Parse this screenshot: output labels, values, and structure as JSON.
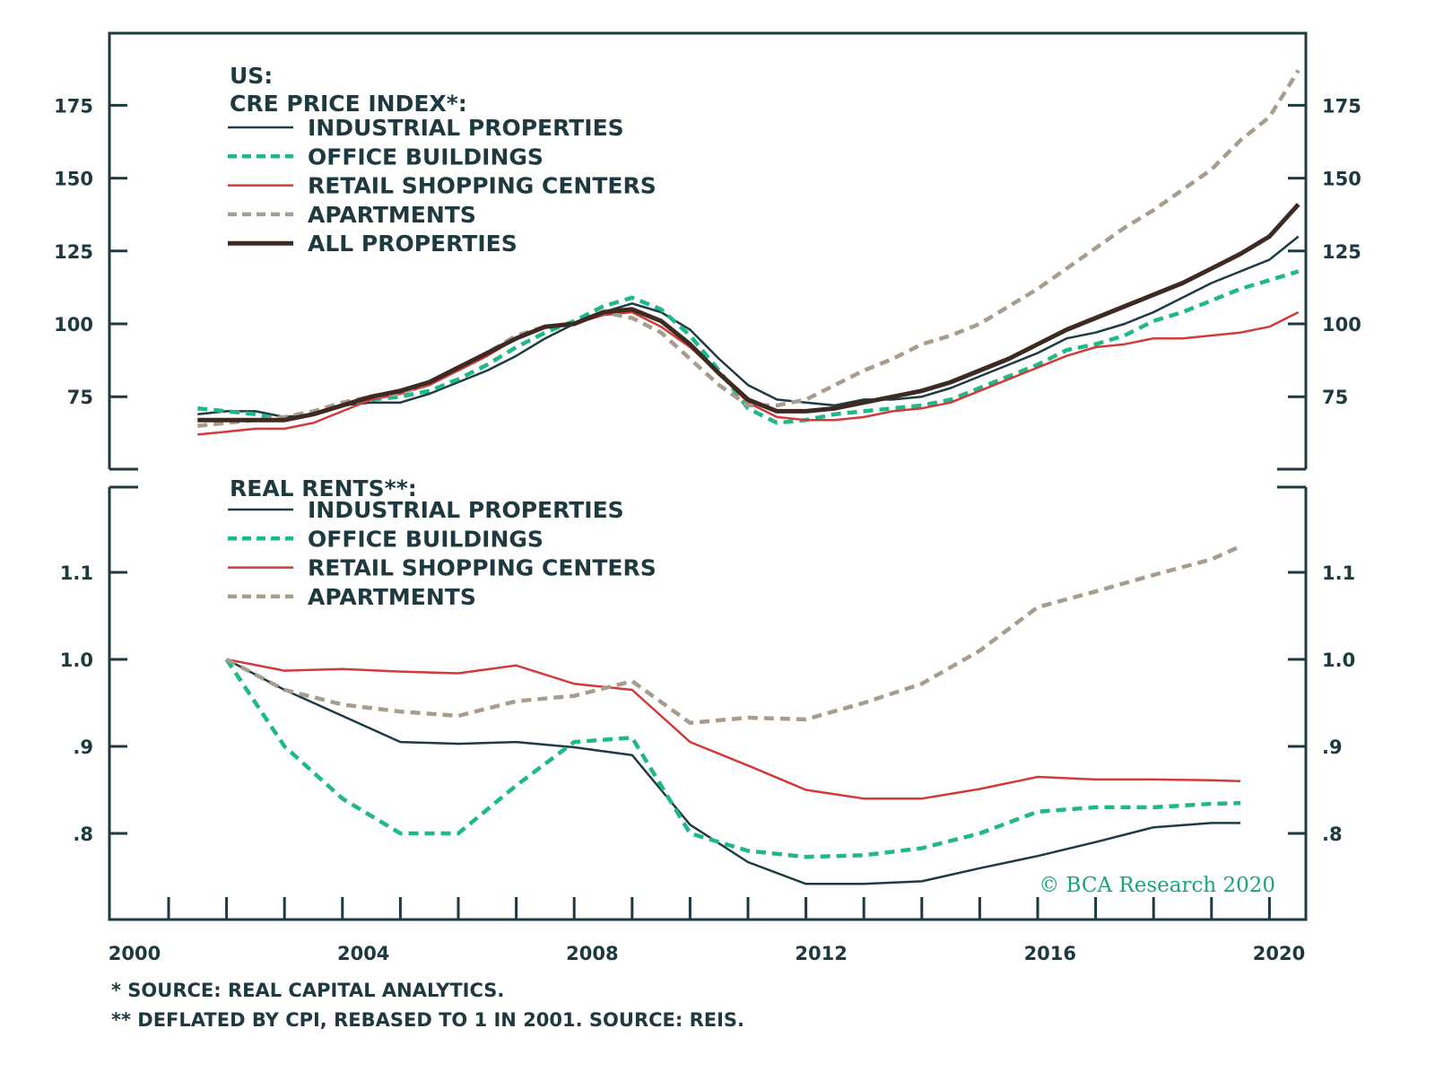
{
  "chart_data": [
    {
      "type": "line",
      "panel": "top",
      "title": "US: CRE PRICE INDEX*:",
      "title_lines": [
        "US:",
        "CRE PRICE INDEX*:"
      ],
      "xlabel": "",
      "ylabel": "",
      "xlim": [
        2000,
        2020
      ],
      "ylim": [
        55,
        195
      ],
      "yticks": [
        75,
        100,
        125,
        150,
        175
      ],
      "ytick_labels": [
        "75",
        "100",
        "125",
        "150",
        "175"
      ],
      "legend_position": "top-left",
      "grid": false,
      "series": [
        {
          "name": "INDUSTRIAL PROPERTIES",
          "color": "#1c3b45",
          "style": "solid",
          "x": [
            2000.5,
            2001,
            2001.5,
            2002,
            2002.5,
            2003,
            2003.5,
            2004,
            2004.5,
            2005,
            2005.5,
            2006,
            2006.5,
            2007,
            2007.5,
            2008,
            2008.5,
            2009,
            2009.5,
            2010,
            2010.5,
            2011,
            2011.5,
            2012,
            2012.5,
            2013,
            2013.5,
            2014,
            2014.5,
            2015,
            2015.5,
            2016,
            2016.5,
            2017,
            2017.5,
            2018,
            2018.5,
            2019,
            2019.5
          ],
          "y": [
            69,
            70,
            70,
            68,
            69,
            72,
            73,
            73,
            76,
            80,
            84,
            89,
            95,
            100,
            104,
            107,
            104,
            98,
            88,
            79,
            74,
            73,
            72,
            74,
            74,
            75,
            78,
            82,
            86,
            90,
            95,
            97,
            100,
            104,
            109,
            114,
            118,
            122,
            130
          ]
        },
        {
          "name": "OFFICE BUILDINGS",
          "color": "#1fb889",
          "style": "dashed",
          "x": [
            2000.5,
            2001,
            2001.5,
            2002,
            2002.5,
            2003,
            2003.5,
            2004,
            2004.5,
            2005,
            2005.5,
            2006,
            2006.5,
            2007,
            2007.5,
            2008,
            2008.5,
            2009,
            2009.5,
            2010,
            2010.5,
            2011,
            2011.5,
            2012,
            2012.5,
            2013,
            2013.5,
            2014,
            2014.5,
            2015,
            2015.5,
            2016,
            2016.5,
            2017,
            2017.5,
            2018,
            2018.5,
            2019,
            2019.5
          ],
          "y": [
            71,
            70,
            69,
            67,
            69,
            72,
            74,
            75,
            77,
            81,
            86,
            92,
            97,
            101,
            106,
            109,
            105,
            96,
            84,
            71,
            66,
            67,
            69,
            70,
            71,
            72,
            74,
            78,
            82,
            86,
            91,
            93,
            96,
            101,
            104,
            108,
            112,
            115,
            118
          ]
        },
        {
          "name": "RETAIL SHOPPING CENTERS",
          "color": "#d23a3a",
          "style": "solid",
          "x": [
            2000.5,
            2001,
            2001.5,
            2002,
            2002.5,
            2003,
            2003.5,
            2004,
            2004.5,
            2005,
            2005.5,
            2006,
            2006.5,
            2007,
            2007.5,
            2008,
            2008.5,
            2009,
            2009.5,
            2010,
            2010.5,
            2011,
            2011.5,
            2012,
            2012.5,
            2013,
            2013.5,
            2014,
            2014.5,
            2015,
            2015.5,
            2016,
            2016.5,
            2017,
            2017.5,
            2018,
            2018.5,
            2019,
            2019.5
          ],
          "y": [
            62,
            63,
            64,
            64,
            66,
            70,
            74,
            76,
            79,
            84,
            89,
            95,
            99,
            100,
            103,
            104,
            99,
            92,
            83,
            73,
            68,
            67,
            67,
            68,
            70,
            71,
            73,
            77,
            81,
            85,
            89,
            92,
            93,
            95,
            95,
            96,
            97,
            99,
            104
          ]
        },
        {
          "name": "APARTMENTS",
          "color": "#a89c8e",
          "style": "dashed",
          "x": [
            2000.5,
            2001,
            2001.5,
            2002,
            2002.5,
            2003,
            2003.5,
            2004,
            2004.5,
            2005,
            2005.5,
            2006,
            2006.5,
            2007,
            2007.5,
            2008,
            2008.5,
            2009,
            2009.5,
            2010,
            2010.5,
            2011,
            2011.5,
            2012,
            2012.5,
            2013,
            2013.5,
            2014,
            2014.5,
            2015,
            2015.5,
            2016,
            2016.5,
            2017,
            2017.5,
            2018,
            2018.5,
            2019,
            2019.5
          ],
          "y": [
            65,
            66,
            67,
            68,
            70,
            73,
            75,
            76,
            80,
            85,
            90,
            96,
            99,
            100,
            104,
            102,
            97,
            88,
            79,
            72,
            72,
            74,
            79,
            84,
            88,
            93,
            96,
            100,
            106,
            112,
            119,
            126,
            133,
            139,
            146,
            153,
            163,
            171,
            187
          ]
        },
        {
          "name": "ALL PROPERTIES",
          "color": "#3e2a22",
          "style": "solid-thick",
          "x": [
            2000.5,
            2001,
            2001.5,
            2002,
            2002.5,
            2003,
            2003.5,
            2004,
            2004.5,
            2005,
            2005.5,
            2006,
            2006.5,
            2007,
            2007.5,
            2008,
            2008.5,
            2009,
            2009.5,
            2010,
            2010.5,
            2011,
            2011.5,
            2012,
            2012.5,
            2013,
            2013.5,
            2014,
            2014.5,
            2015,
            2015.5,
            2016,
            2016.5,
            2017,
            2017.5,
            2018,
            2018.5,
            2019,
            2019.5
          ],
          "y": [
            67,
            67,
            67,
            67,
            69,
            72,
            75,
            77,
            80,
            85,
            90,
            95,
            99,
            100,
            104,
            105,
            101,
            93,
            83,
            74,
            70,
            70,
            71,
            73,
            75,
            77,
            80,
            84,
            88,
            93,
            98,
            102,
            106,
            110,
            114,
            119,
            124,
            130,
            141
          ]
        }
      ]
    },
    {
      "type": "line",
      "panel": "bottom",
      "title": "REAL RENTS**:",
      "xlabel": "",
      "ylabel": "",
      "xlim": [
        2000,
        2020
      ],
      "ylim": [
        0.74,
        1.2
      ],
      "yticks": [
        0.8,
        0.9,
        1.0,
        1.1
      ],
      "ytick_labels": [
        ".8",
        ".9",
        "1.0",
        "1.1"
      ],
      "legend_position": "top-left",
      "grid": false,
      "series": [
        {
          "name": "INDUSTRIAL PROPERTIES",
          "color": "#1c3b45",
          "style": "solid",
          "x": [
            2001,
            2002,
            2003,
            2004,
            2005,
            2006,
            2007,
            2008,
            2009,
            2010,
            2011,
            2012,
            2013,
            2014,
            2015,
            2016,
            2017,
            2018,
            2018.5
          ],
          "y": [
            1.0,
            0.965,
            0.935,
            0.905,
            0.903,
            0.905,
            0.899,
            0.89,
            0.81,
            0.767,
            0.742,
            0.742,
            0.745,
            0.76,
            0.774,
            0.79,
            0.807,
            0.812,
            0.812
          ]
        },
        {
          "name": "OFFICE BUILDINGS",
          "color": "#1fb889",
          "style": "dashed",
          "x": [
            2001,
            2002,
            2003,
            2004,
            2005,
            2006,
            2007,
            2008,
            2009,
            2010,
            2011,
            2012,
            2013,
            2014,
            2015,
            2016,
            2017,
            2018,
            2018.5
          ],
          "y": [
            1.0,
            0.9,
            0.84,
            0.8,
            0.8,
            0.855,
            0.905,
            0.91,
            0.8,
            0.78,
            0.773,
            0.775,
            0.783,
            0.8,
            0.825,
            0.83,
            0.83,
            0.834,
            0.835
          ]
        },
        {
          "name": "RETAIL SHOPPING CENTERS",
          "color": "#d23a3a",
          "style": "solid",
          "x": [
            2001,
            2002,
            2003,
            2004,
            2005,
            2006,
            2007,
            2008,
            2009,
            2010,
            2011,
            2012,
            2013,
            2014,
            2015,
            2016,
            2017,
            2018,
            2018.5
          ],
          "y": [
            1.0,
            0.987,
            0.989,
            0.986,
            0.984,
            0.993,
            0.972,
            0.965,
            0.905,
            0.878,
            0.85,
            0.84,
            0.84,
            0.851,
            0.865,
            0.862,
            0.862,
            0.861,
            0.86
          ]
        },
        {
          "name": "APARTMENTS",
          "color": "#a89c8e",
          "style": "dashed",
          "x": [
            2001,
            2002,
            2003,
            2004,
            2005,
            2006,
            2007,
            2008,
            2009,
            2010,
            2011,
            2012,
            2013,
            2014,
            2015,
            2016,
            2017,
            2018,
            2018.5
          ],
          "y": [
            1.0,
            0.965,
            0.948,
            0.94,
            0.935,
            0.952,
            0.958,
            0.975,
            0.927,
            0.933,
            0.931,
            0.95,
            0.972,
            1.01,
            1.06,
            1.078,
            1.097,
            1.115,
            1.13
          ]
        }
      ]
    }
  ],
  "x_axis": {
    "tick_labels": [
      "2000",
      "2004",
      "2008",
      "2012",
      "2016",
      "2020"
    ],
    "tick_label_years": [
      2000,
      2004,
      2008,
      2012,
      2016,
      2020
    ]
  },
  "credit": "© BCA Research 2020",
  "footnotes": [
    "*  SOURCE: REAL CAPITAL ANALYTICS.",
    "** DEFLATED BY CPI, REBASED TO 1 IN 2001. SOURCE: REIS."
  ],
  "colors": {
    "axis": "#1e3a40",
    "credit": "#17a57a"
  }
}
